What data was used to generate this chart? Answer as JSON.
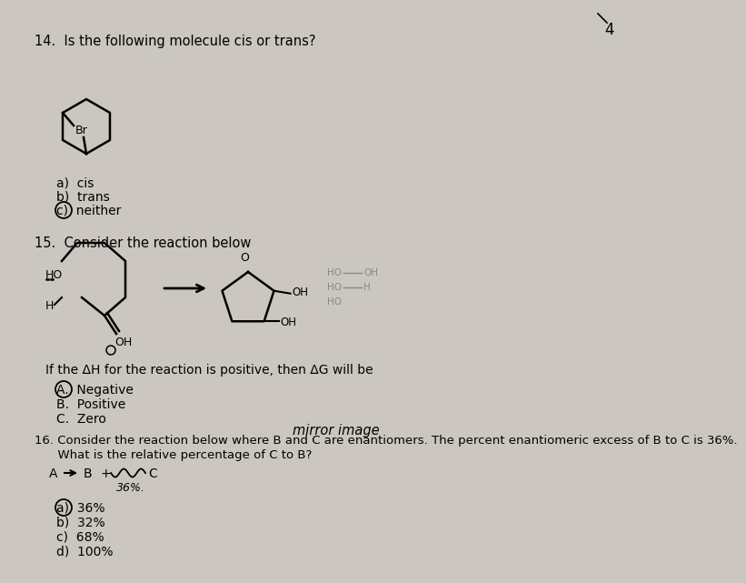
{
  "bg_color": "#cbc7c0",
  "page_num": "4",
  "q4_text": "14.  Is the following molecule cis or trans?",
  "q4_a1": "a)  cis",
  "q4_a2": "b)  trans",
  "q4_a3": "c)  neither",
  "q15_text": "15.  Consider the reaction below",
  "q15_cond": "If the ΔH for the reaction is positive, then ΔG will be",
  "q15_a1": "A.  Negative",
  "q15_a2": "B.  Positive",
  "q15_a3": "C.  Zero",
  "q16_line1": "16. Consider the reaction below where B and C are enantiomers. The percent enantiomeric excess of B to C is 36%.",
  "q16_line2": "      What is the relative percentage of C to B?",
  "q16_a1": "a)  36%",
  "q16_a2": "b)  32%",
  "q16_a3": "c)  68%",
  "q16_a4": "d)  100%",
  "mirror_text": "mirror image",
  "pct_36": "36%."
}
